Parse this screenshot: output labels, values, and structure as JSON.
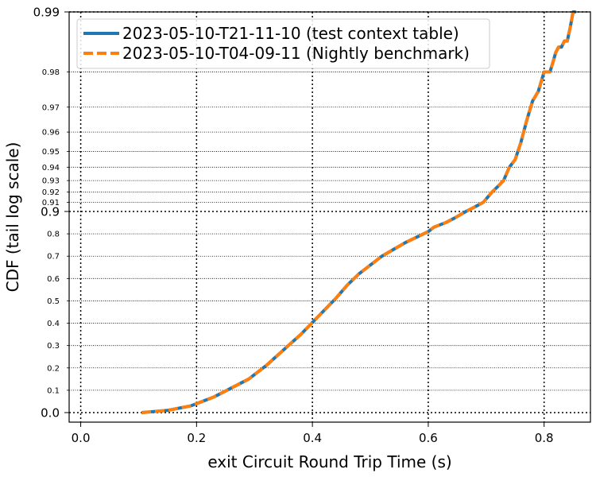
{
  "chart_data": {
    "type": "line",
    "title": "",
    "xlabel": "exit Circuit Round Trip Time (s)",
    "ylabel": "CDF (tail log scale)",
    "xlim": [
      -0.02,
      0.88
    ],
    "x_ticks": [
      0.0,
      0.2,
      0.4,
      0.6,
      0.8
    ],
    "x_tick_labels": [
      "0.0",
      "0.2",
      "0.4",
      "0.6",
      "0.8"
    ],
    "y_scale": "linear below 0.9, log tail (1 - y) above 0.9",
    "y_major_ticks": [
      0.0,
      0.9,
      0.99
    ],
    "y_major_tick_labels": [
      "0.0",
      "0.9",
      "0.99"
    ],
    "y_minor_ticks": [
      0.1,
      0.2,
      0.3,
      0.4,
      0.5,
      0.6,
      0.7,
      0.8,
      0.91,
      0.92,
      0.93,
      0.94,
      0.95,
      0.96,
      0.97,
      0.98
    ],
    "y_minor_tick_labels": [
      "0.1",
      "0.2",
      "0.3",
      "0.4",
      "0.5",
      "0.6",
      "0.7",
      "0.8",
      "0.91",
      "0.92",
      "0.93",
      "0.94",
      "0.95",
      "0.96",
      "0.97",
      "0.98"
    ],
    "grid": true,
    "legend_position": "top-left",
    "series": [
      {
        "name": "2023-05-10-T21-11-10 (test context table)",
        "color": "#1f77b4",
        "style": "solid",
        "x": [
          0.105,
          0.15,
          0.19,
          0.23,
          0.26,
          0.29,
          0.32,
          0.35,
          0.38,
          0.41,
          0.44,
          0.46,
          0.48,
          0.5,
          0.52,
          0.54,
          0.56,
          0.58,
          0.6,
          0.61,
          0.63,
          0.645,
          0.655,
          0.665,
          0.68,
          0.695,
          0.71,
          0.72,
          0.73,
          0.74,
          0.75,
          0.76,
          0.77,
          0.78,
          0.79,
          0.8,
          0.81,
          0.815,
          0.82,
          0.825,
          0.83,
          0.835,
          0.84,
          0.845,
          0.85,
          0.855
        ],
        "y": [
          0.0,
          0.01,
          0.03,
          0.07,
          0.11,
          0.15,
          0.21,
          0.28,
          0.35,
          0.43,
          0.51,
          0.57,
          0.62,
          0.66,
          0.7,
          0.73,
          0.76,
          0.785,
          0.81,
          0.83,
          0.85,
          0.87,
          0.885,
          0.9,
          0.905,
          0.91,
          0.92,
          0.925,
          0.93,
          0.94,
          0.945,
          0.955,
          0.965,
          0.972,
          0.975,
          0.98,
          0.98,
          0.982,
          0.984,
          0.985,
          0.985,
          0.986,
          0.986,
          0.988,
          0.99,
          0.99
        ]
      },
      {
        "name": "2023-05-10-T04-09-11 (Nightly benchmark)",
        "color": "#ff7f0e",
        "style": "dashed",
        "x": [
          0.105,
          0.15,
          0.19,
          0.23,
          0.26,
          0.29,
          0.32,
          0.35,
          0.38,
          0.41,
          0.44,
          0.46,
          0.48,
          0.5,
          0.52,
          0.54,
          0.56,
          0.58,
          0.6,
          0.61,
          0.63,
          0.645,
          0.655,
          0.665,
          0.68,
          0.695,
          0.71,
          0.72,
          0.73,
          0.74,
          0.75,
          0.76,
          0.77,
          0.78,
          0.79,
          0.8,
          0.81,
          0.815,
          0.82,
          0.825,
          0.83,
          0.835,
          0.84,
          0.845,
          0.85,
          0.855
        ],
        "y": [
          0.0,
          0.01,
          0.03,
          0.07,
          0.11,
          0.15,
          0.21,
          0.28,
          0.35,
          0.43,
          0.51,
          0.57,
          0.62,
          0.66,
          0.7,
          0.73,
          0.76,
          0.785,
          0.81,
          0.83,
          0.85,
          0.87,
          0.885,
          0.9,
          0.905,
          0.91,
          0.92,
          0.925,
          0.93,
          0.94,
          0.945,
          0.955,
          0.965,
          0.972,
          0.975,
          0.98,
          0.98,
          0.982,
          0.984,
          0.985,
          0.985,
          0.986,
          0.986,
          0.988,
          0.99,
          0.99
        ]
      }
    ]
  }
}
